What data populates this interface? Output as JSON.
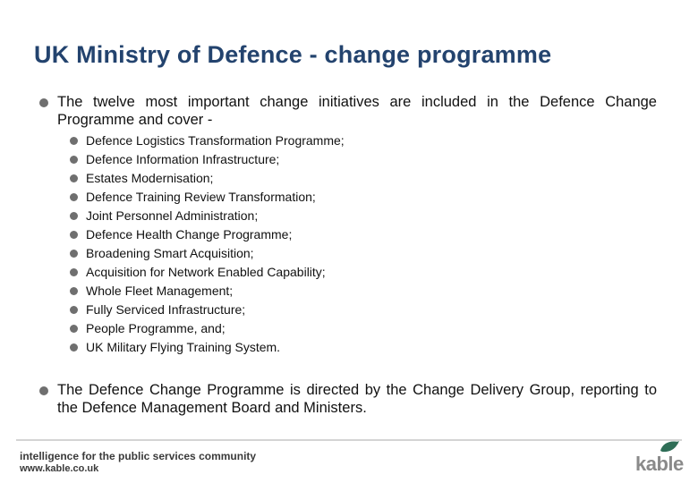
{
  "title": "UK Ministry of Defence - change programme",
  "bullets": [
    {
      "text": "The twelve most important change initiatives are included in the Defence Change Programme and cover -",
      "sub_items": [
        "Defence Logistics Transformation Programme;",
        "Defence Information Infrastructure;",
        "Estates Modernisation;",
        "Defence Training Review Transformation;",
        "Joint Personnel Administration;",
        "Defence Health Change Programme;",
        "Broadening Smart Acquisition;",
        "Acquisition for Network Enabled Capability;",
        "Whole Fleet Management;",
        "Fully Serviced Infrastructure;",
        "People Programme, and;",
        "UK Military Flying Training System."
      ]
    },
    {
      "text": "The Defence Change Programme is directed by the Change Delivery Group, reporting to the Defence Management Board and Ministers."
    }
  ],
  "footer": {
    "tagline": "intelligence for the public services community",
    "url": "www.kable.co.uk",
    "logo_text": "kable",
    "logo_icon": "leaf-icon",
    "logo_color": "#2f6e57"
  },
  "colors": {
    "title": "#23436e",
    "bullet": "#6f6f6f"
  }
}
